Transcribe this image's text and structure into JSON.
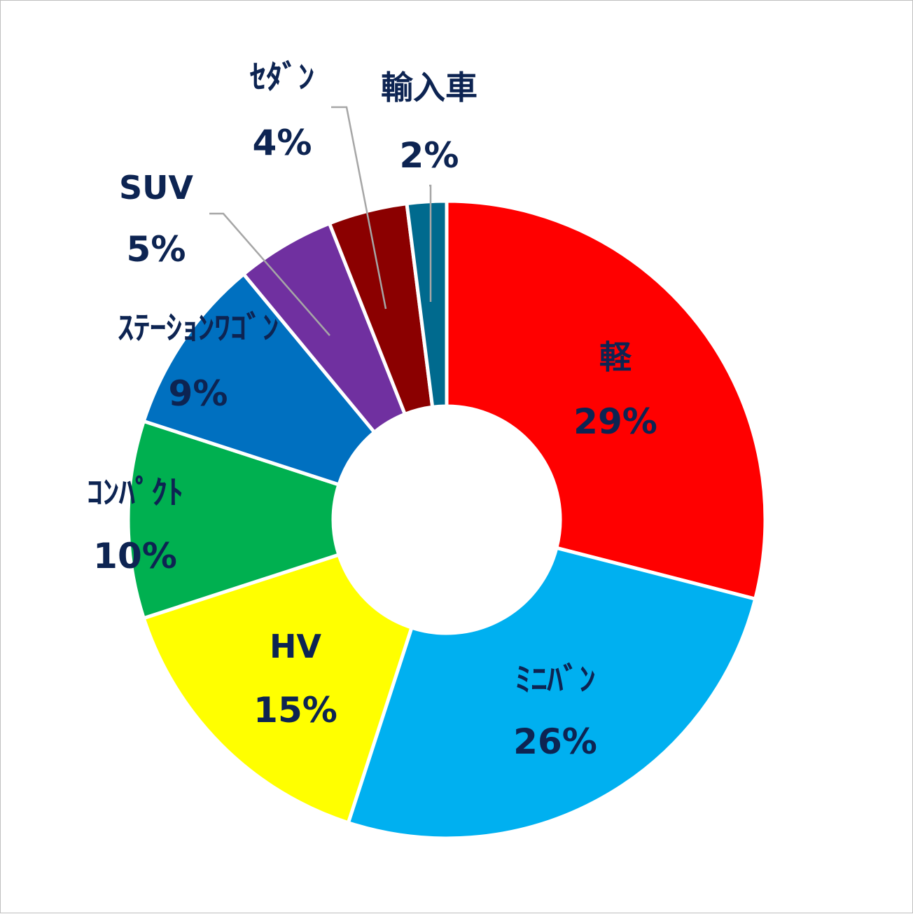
{
  "chart_data": {
    "type": "pie",
    "variant": "donut",
    "title": "",
    "categories": [
      "軽",
      "ミニバン",
      "HV",
      "コンパクト",
      "ステーションワゴン",
      "SUV",
      "セダン",
      "輸入車"
    ],
    "values": [
      29,
      26,
      15,
      10,
      9,
      5,
      4,
      2
    ],
    "value_labels": [
      "29%",
      "26%",
      "15%",
      "10%",
      "9%",
      "5%",
      "4%",
      "2%"
    ],
    "display_names": [
      "軽",
      "ﾐﾆﾊﾞﾝ",
      "HV",
      "ｺﾝﾊﾟｸﾄ",
      "ｽﾃｰｼｮﾝﾜｺﾞﾝ",
      "SUV",
      "ｾﾀﾞﾝ",
      "輸入車"
    ],
    "colors": [
      "#ff0000",
      "#00b0f0",
      "#ffff00",
      "#00b050",
      "#0070c0",
      "#7030a0",
      "#8b0000",
      "#006a8e"
    ],
    "label_color": "#0d2452",
    "start_angle_deg": 0,
    "direction": "clockwise",
    "legend": "none"
  }
}
